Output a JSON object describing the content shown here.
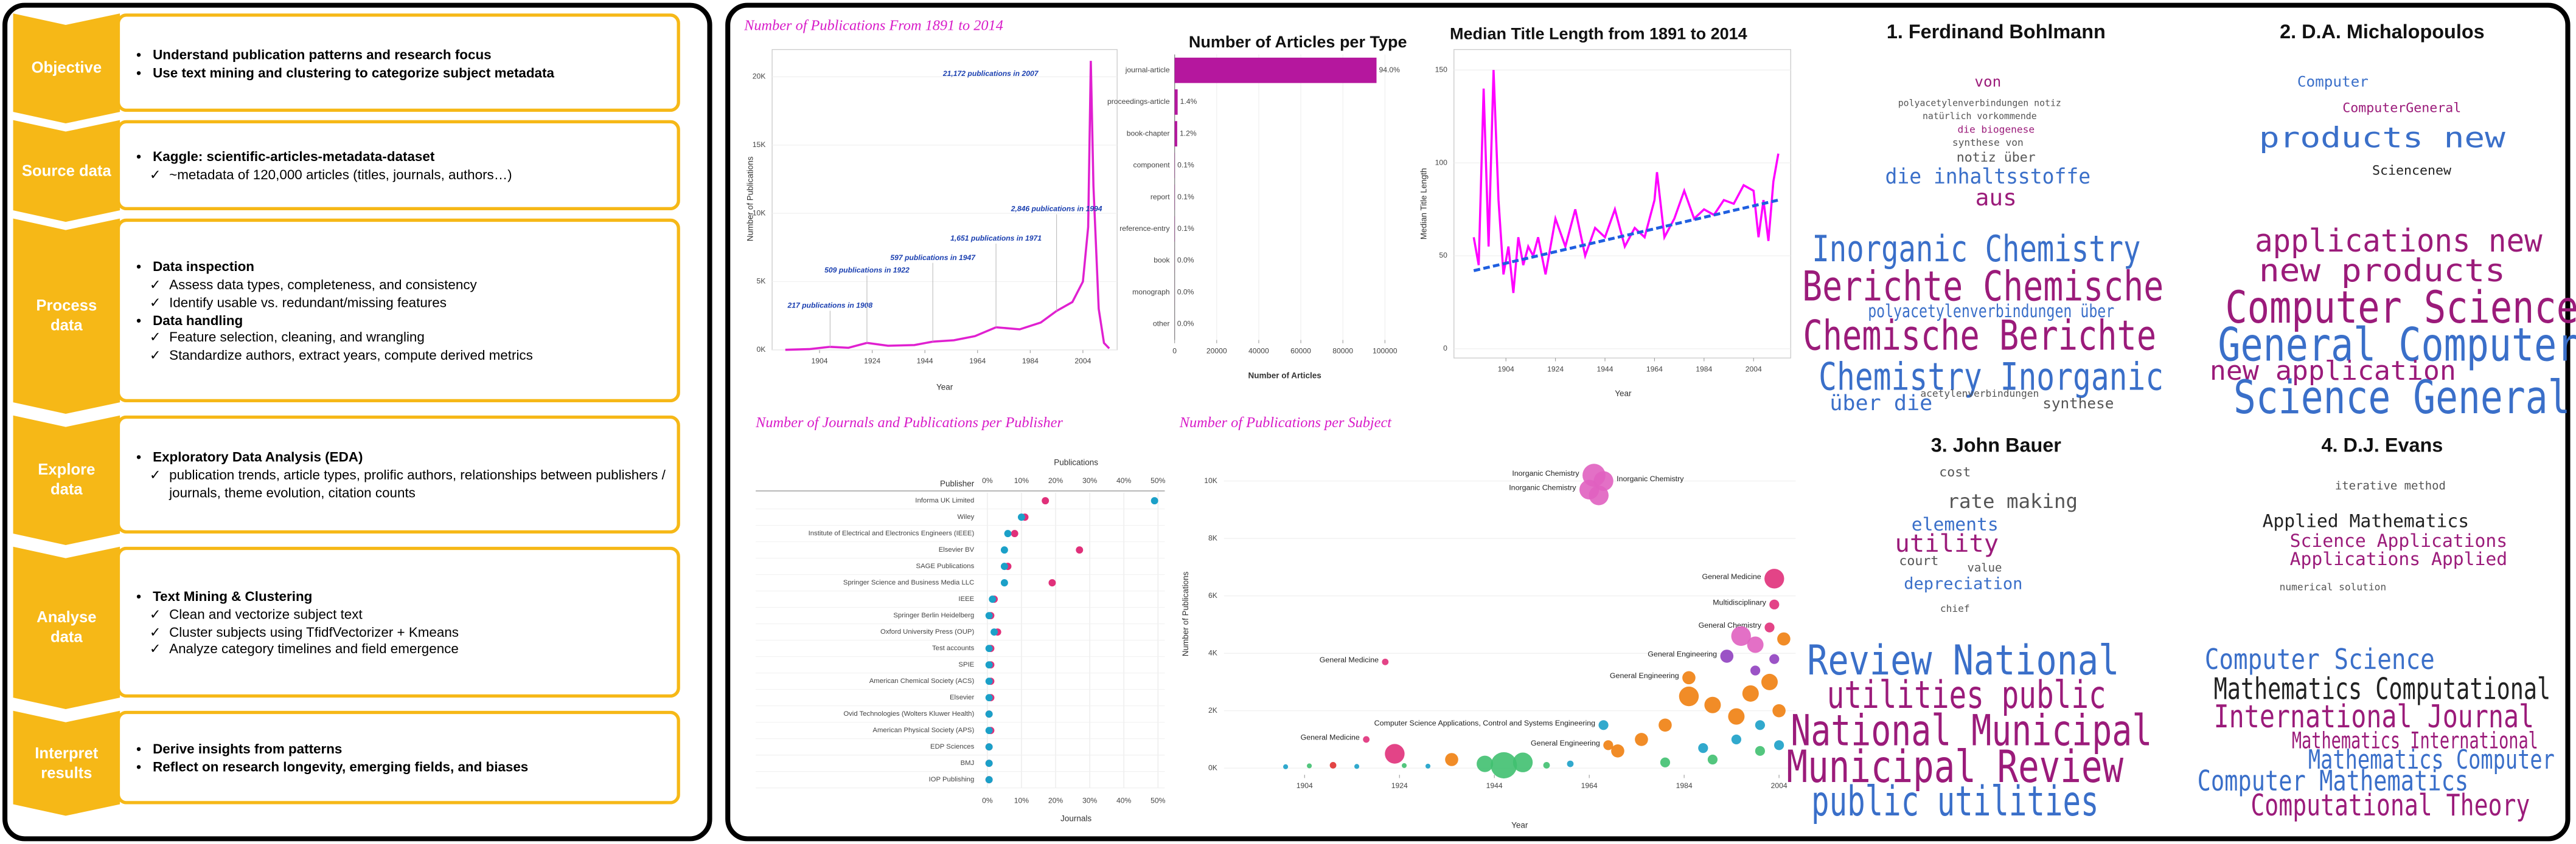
{
  "process": {
    "steps": [
      {
        "label": "Objective",
        "points": [
          {
            "text": "Understand publication patterns and research focus",
            "checks": []
          },
          {
            "text": "Use text mining and clustering to categorize subject metadata",
            "checks": []
          }
        ]
      },
      {
        "label": "Source data",
        "points": [
          {
            "text": "Kaggle: scientific-articles-metadata-dataset",
            "checks": [
              "~metadata of 120,000 articles (titles, journals, authors…)"
            ]
          }
        ]
      },
      {
        "label": "Process data",
        "points": [
          {
            "text": "Data inspection",
            "checks": [
              "Assess data types, completeness, and consistency",
              "Identify usable vs. redundant/missing features"
            ]
          },
          {
            "text": "Data handling",
            "checks": [
              "Feature selection, cleaning, and wrangling",
              "Standardize authors, extract years, compute derived metrics"
            ]
          }
        ]
      },
      {
        "label": "Explore data",
        "points": [
          {
            "text": "Exploratory Data Analysis (EDA)",
            "checks": [
              "publication trends, article types, prolific authors, relationships between publishers / journals, theme evolution, citation counts"
            ]
          }
        ]
      },
      {
        "label": "Analyse data",
        "points": [
          {
            "text": "Text Mining & Clustering",
            "checks": [
              "Clean and vectorize subject text",
              "Cluster subjects using TfidfVectorizer + Kmeans",
              "Analyze category timelines and field emergence"
            ]
          }
        ]
      },
      {
        "label": "Interpret results",
        "points": [
          {
            "text": "Derive insights from patterns",
            "checks": []
          },
          {
            "text": "Reflect on research longevity, emerging fields, and biases",
            "checks": []
          }
        ]
      }
    ]
  },
  "chart_data": [
    {
      "type": "line",
      "title": "Number of Publications From 1891 to 2014",
      "x_label": "Year",
      "y_label": "Number of Publications",
      "x": [
        1891,
        1900,
        1908,
        1915,
        1922,
        1930,
        1940,
        1947,
        1955,
        1963,
        1971,
        1980,
        1988,
        1994,
        2000,
        2004,
        2006,
        2007,
        2008,
        2010,
        2012,
        2014
      ],
      "series": [
        {
          "color": "#e020d0",
          "values": [
            0,
            50,
            217,
            150,
            509,
            300,
            350,
            597,
            700,
            1000,
            1651,
            1500,
            2000,
            2846,
            3500,
            5000,
            9000,
            21172,
            12000,
            3000,
            500,
            100
          ]
        }
      ],
      "xlim": [
        1886,
        2017
      ],
      "xticks": [
        1904,
        1924,
        1944,
        1964,
        1984,
        2004
      ],
      "ylim": [
        0,
        22000
      ],
      "yticks": [
        {
          "value": 0,
          "label": "0K"
        },
        {
          "value": 5000,
          "label": "5K"
        },
        {
          "value": 10000,
          "label": "10K"
        },
        {
          "value": 15000,
          "label": "15K"
        },
        {
          "value": 20000,
          "label": "20K"
        }
      ],
      "annotations": [
        {
          "text": "217 publications in 1908",
          "x": 1908,
          "y": 217
        },
        {
          "text": "509 publications in 1922",
          "x": 1922,
          "y": 509
        },
        {
          "text": "597 publications in 1947",
          "x": 1947,
          "y": 597
        },
        {
          "text": "1,651 publications in 1971",
          "x": 1971,
          "y": 1651
        },
        {
          "text": "2,846 publications in 1994",
          "x": 1994,
          "y": 2846
        },
        {
          "text": "21,172 publications in 2007",
          "x": 2007,
          "y": 21172
        }
      ]
    },
    {
      "type": "bar",
      "title": "Number of Articles per Type",
      "x_label": "Number of Articles",
      "color": "#b5179e",
      "categories": [
        "journal-article",
        "proceedings-article",
        "book-chapter",
        "component",
        "report",
        "reference-entry",
        "book",
        "monograph",
        "other"
      ],
      "values": [
        96000,
        1430,
        1225,
        100,
        100,
        100,
        30,
        20,
        10
      ],
      "percent_labels": [
        "94.0%",
        "1.4%",
        "1.2%",
        "0.1%",
        "0.1%",
        "0.1%",
        "0.0%",
        "0.0%",
        "0.0%"
      ],
      "xlim": [
        0,
        105000
      ],
      "xticks": [
        0,
        20000,
        40000,
        60000,
        80000,
        100000
      ]
    },
    {
      "type": "line",
      "title": "Median Title Length from 1891 to 2014",
      "x_label": "Year",
      "y_label": "Median Title Length",
      "x": [
        1891,
        1893,
        1895,
        1897,
        1899,
        1901,
        1903,
        1905,
        1907,
        1909,
        1911,
        1913,
        1915,
        1917,
        1920,
        1924,
        1928,
        1932,
        1936,
        1940,
        1944,
        1948,
        1952,
        1956,
        1960,
        1964,
        1965,
        1968,
        1972,
        1976,
        1980,
        1984,
        1988,
        1992,
        1996,
        2000,
        2004,
        2006,
        2008,
        2010,
        2012,
        2014
      ],
      "series": [
        {
          "color": "#ff00ff",
          "values": [
            60,
            45,
            140,
            55,
            150,
            80,
            40,
            55,
            30,
            60,
            45,
            55,
            50,
            60,
            40,
            70,
            55,
            75,
            50,
            65,
            60,
            75,
            55,
            65,
            60,
            80,
            95,
            60,
            70,
            85,
            70,
            75,
            72,
            80,
            78,
            88,
            85,
            60,
            80,
            58,
            90,
            105
          ]
        }
      ],
      "trend": {
        "color": "#1f5fe0",
        "x": [
          1891,
          2014
        ],
        "values": [
          42,
          80
        ]
      },
      "xlim": [
        1883,
        2019
      ],
      "xticks": [
        1904,
        1924,
        1944,
        1964,
        1984,
        2004
      ],
      "ylim": [
        -5,
        161
      ],
      "yticks": [
        0,
        50,
        100,
        150
      ]
    },
    {
      "type": "dot",
      "title": "Number of Journals and Publications per Publisher",
      "y_label": "Publisher",
      "categories": [
        "Informa UK Limited",
        "Wiley",
        "Institute of Electrical and Electronics Engineers (IEEE)",
        "Elsevier BV",
        "SAGE Publications",
        "Springer Science and Business Media LLC",
        "IEEE",
        "Springer Berlin Heidelberg",
        "Oxford University Press (OUP)",
        "Test accounts",
        "SPIE",
        "American Chemical Society (ACS)",
        "Elsevier",
        "Ovid Technologies (Wolters Kluwer Health)",
        "American Physical Society (APS)",
        "EDP Sciences",
        "BMJ",
        "IOP Publishing"
      ],
      "series": [
        {
          "name": "Publications",
          "color": "#e0307a",
          "values": [
            17,
            11,
            8,
            27,
            6,
            19,
            2,
            1,
            3,
            1,
            1,
            1,
            1,
            0.5,
            1,
            0.5,
            0.5,
            0.5
          ]
        },
        {
          "name": "Journals",
          "color": "#1ba0c8",
          "values": [
            49,
            10,
            6,
            5,
            5,
            5,
            1.5,
            0.5,
            2,
            0.5,
            0.5,
            0.5,
            0.5,
            0.5,
            0.5,
            0.5,
            0.5,
            0.5
          ]
        }
      ],
      "xlim": [
        0,
        52
      ],
      "xticks": [
        {
          "value": 0,
          "label": "0%"
        },
        {
          "value": 10,
          "label": "10%"
        },
        {
          "value": 20,
          "label": "20%"
        },
        {
          "value": 30,
          "label": "30%"
        },
        {
          "value": 40,
          "label": "40%"
        },
        {
          "value": 50,
          "label": "50%"
        }
      ]
    },
    {
      "type": "scatter",
      "title": "Number of Publications per Subject",
      "x_label": "Year",
      "y_label": "Number of Publications",
      "x": [
        1965,
        1967,
        1964,
        1966,
        2003,
        2003,
        2002,
        1993,
        1985,
        1921,
        1917,
        1967,
        1968,
        1923,
        1946,
        1950,
        1942,
        1935,
        1985,
        1990,
        1995,
        1998,
        2002,
        2005,
        2004,
        1975,
        1970,
        1980,
        1995,
        2000,
        1988,
        2004,
        1999,
        2003,
        1996,
        1999,
        1990,
        2000,
        1980,
        1910,
        1900,
        1905,
        1915,
        1925,
        1930,
        1955,
        1960
      ],
      "y": [
        10200,
        10000,
        9700,
        9500,
        6600,
        5700,
        4900,
        3900,
        3150,
        3700,
        1000,
        1500,
        800,
        500,
        100,
        200,
        150,
        300,
        2500,
        2200,
        1800,
        2600,
        3000,
        4500,
        2000,
        1000,
        600,
        1500,
        1000,
        1500,
        700,
        800,
        3400,
        3800,
        4600,
        4300,
        300,
        600,
        200,
        100,
        50,
        80,
        60,
        90,
        70,
        100,
        150
      ],
      "sizes": [
        7,
        6,
        6,
        6,
        6,
        3,
        3,
        4,
        4,
        2,
        2,
        3,
        3,
        6,
        8,
        6,
        5,
        4,
        6,
        5,
        5,
        5,
        5,
        4,
        4,
        4,
        4,
        4,
        3,
        3,
        3,
        3,
        3,
        3,
        6,
        5,
        3,
        3,
        3,
        2,
        1.5,
        1.5,
        1.5,
        1.5,
        1.5,
        2,
        2
      ],
      "colors": [
        "#e060c0",
        "#e060c0",
        "#e060c0",
        "#e060c0",
        "#e0307a",
        "#e0307a",
        "#e0307a",
        "#9040c0",
        "#f08010",
        "#e0307a",
        "#e0307a",
        "#1ba0c8",
        "#f08010",
        "#e0307a",
        "#40c070",
        "#40c070",
        "#40c070",
        "#f08010",
        "#f08010",
        "#f08010",
        "#f08010",
        "#f08010",
        "#f08010",
        "#f08010",
        "#f08010",
        "#f08010",
        "#f08010",
        "#f08010",
        "#1ba0c8",
        "#1ba0c8",
        "#1ba0c8",
        "#1ba0c8",
        "#9040c0",
        "#9040c0",
        "#e060c0",
        "#e060c0",
        "#40c070",
        "#40c070",
        "#40c070",
        "#e03030",
        "#1ba0c8",
        "#40c070",
        "#1ba0c8",
        "#40c070",
        "#1ba0c8",
        "#40c070",
        "#1ba0c8"
      ],
      "point_labels": [
        "Inorganic Chemistry",
        "Inorganic Chemistry",
        "Inorganic Chemistry",
        null,
        "General Medicine",
        "Multidisciplinary",
        "General Chemistry",
        "General Engineering",
        "General Engineering",
        "General Medicine",
        "General Medicine",
        "Computer Science Applications, Control and Systems Engineering",
        "General Engineering",
        null,
        null,
        null,
        null,
        null,
        null,
        null,
        null,
        null,
        null,
        null,
        null,
        null,
        null,
        null,
        null,
        null,
        null,
        null,
        null,
        null,
        null,
        null,
        null,
        null,
        null,
        null,
        null,
        null,
        null,
        null,
        null,
        null,
        null
      ],
      "xlim": [
        1887,
        2007.5
      ],
      "xticks": [
        1904,
        1924,
        1944,
        1964,
        1984,
        2004
      ],
      "ylim": [
        -230,
        10970
      ],
      "yticks": [
        {
          "value": 0,
          "label": "0K"
        },
        {
          "value": 2000,
          "label": "2K"
        },
        {
          "value": 4000,
          "label": "4K"
        },
        {
          "value": 6000,
          "label": "6K"
        },
        {
          "value": 8000,
          "label": "8K"
        },
        {
          "value": 10000,
          "label": "10K"
        }
      ]
    }
  ],
  "word_clouds": [
    {
      "title": "1. Ferdinand Bohlmann",
      "words": [
        {
          "text": "polyacetylenverbindungen notiz",
          "color": "#555555"
        },
        {
          "text": "natürlich vorkommende",
          "color": "#555555"
        },
        {
          "text": "die biogenese",
          "color": "#9b1b7a"
        },
        {
          "text": "synthese von",
          "color": "#555555"
        },
        {
          "text": "notiz über",
          "color": "#555555"
        },
        {
          "text": "die inhaltsstoffe",
          "color": "#3a6fc9"
        },
        {
          "text": "aus",
          "color": "#9b1b7a"
        },
        {
          "text": "von",
          "color": "#9b1b7a"
        },
        {
          "text": "Inorganic Chemistry",
          "color": "#3a6fc9"
        },
        {
          "text": "Berichte Chemische",
          "color": "#9b1b7a"
        },
        {
          "text": "polyacetylenverbindungen über",
          "color": "#3a6fc9"
        },
        {
          "text": "Chemische Berichte",
          "color": "#9b1b7a"
        },
        {
          "text": "Chemistry Inorganic",
          "color": "#3a6fc9"
        },
        {
          "text": "über die",
          "color": "#3a6fc9"
        },
        {
          "text": "synthese",
          "color": "#555555"
        },
        {
          "text": "acetylenverbindungen",
          "color": "#555555"
        }
      ]
    },
    {
      "title": "2. D.A. Michalopoulos",
      "words": [
        {
          "text": "Computer",
          "color": "#3a6fc9"
        },
        {
          "text": "ComputerGeneral",
          "color": "#9b1b7a"
        },
        {
          "text": "products new",
          "color": "#3a6fc9"
        },
        {
          "text": "Sciencenew",
          "color": "#222222"
        },
        {
          "text": "applications new",
          "color": "#9b1b7a"
        },
        {
          "text": "new products",
          "color": "#9b1b7a"
        },
        {
          "text": "Computer Science",
          "color": "#9b1b7a"
        },
        {
          "text": "General Computer",
          "color": "#3a6fc9"
        },
        {
          "text": "new application",
          "color": "#9b1b7a"
        },
        {
          "text": "Science General",
          "color": "#3a6fc9"
        }
      ]
    },
    {
      "title": "3. John Bauer",
      "words": [
        {
          "text": "cost",
          "color": "#555555"
        },
        {
          "text": "rate making",
          "color": "#555555"
        },
        {
          "text": "elements",
          "color": "#3a6fc9"
        },
        {
          "text": "utility",
          "color": "#9b1b7a"
        },
        {
          "text": "court",
          "color": "#555555"
        },
        {
          "text": "value",
          "color": "#555555"
        },
        {
          "text": "depreciation",
          "color": "#3a6fc9"
        },
        {
          "text": "chief",
          "color": "#555555"
        },
        {
          "text": "Review National",
          "color": "#3a6fc9"
        },
        {
          "text": "utilities public",
          "color": "#9b1b7a"
        },
        {
          "text": "National Municipal",
          "color": "#9b1b7a"
        },
        {
          "text": "Municipal Review",
          "color": "#9b1b7a"
        },
        {
          "text": "public utilities",
          "color": "#3a6fc9"
        }
      ]
    },
    {
      "title": "4. D.J. Evans",
      "words": [
        {
          "text": "iterative method",
          "color": "#555555"
        },
        {
          "text": "Applied Mathematics",
          "color": "#222222"
        },
        {
          "text": "Science Applications",
          "color": "#9b1b7a"
        },
        {
          "text": "Applications Applied",
          "color": "#9b1b7a"
        },
        {
          "text": "numerical solution",
          "color": "#555555"
        },
        {
          "text": "Computer Science",
          "color": "#3a6fc9"
        },
        {
          "text": "Mathematics Computational",
          "color": "#222222"
        },
        {
          "text": "International Journal",
          "color": "#9b1b7a"
        },
        {
          "text": "Mathematics International",
          "color": "#9b1b7a"
        },
        {
          "text": "Mathematics Computer",
          "color": "#3a6fc9"
        },
        {
          "text": "Computer Mathematics",
          "color": "#3a6fc9"
        },
        {
          "text": "Computational Theory",
          "color": "#9b1b7a"
        }
      ]
    }
  ]
}
